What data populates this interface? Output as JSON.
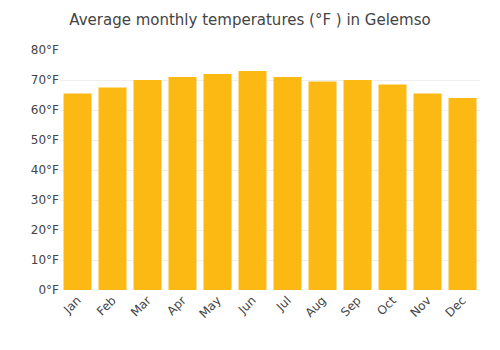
{
  "chart_data": {
    "type": "bar",
    "title": "Average monthly temperatures (°F ) in Gelemso",
    "categories": [
      "Jan",
      "Feb",
      "Mar",
      "Apr",
      "May",
      "Jun",
      "Jul",
      "Aug",
      "Sep",
      "Oct",
      "Nov",
      "Dec"
    ],
    "values": [
      65.5,
      67.5,
      70.0,
      71.0,
      72.0,
      73.0,
      71.0,
      69.5,
      70.0,
      68.5,
      65.5,
      64.0
    ],
    "color": "#FDB913",
    "ylim": [
      0,
      80
    ],
    "yticks": [
      {
        "value": 0,
        "label": "0°F"
      },
      {
        "value": 10,
        "label": "10°F"
      },
      {
        "value": 20,
        "label": "20°F"
      },
      {
        "value": 30,
        "label": "30°F"
      },
      {
        "value": 40,
        "label": "40°F"
      },
      {
        "value": 50,
        "label": "50°F"
      },
      {
        "value": 60,
        "label": "60°F"
      },
      {
        "value": 70,
        "label": "70°F"
      },
      {
        "value": 80,
        "label": "80°F"
      }
    ],
    "grid": true
  }
}
